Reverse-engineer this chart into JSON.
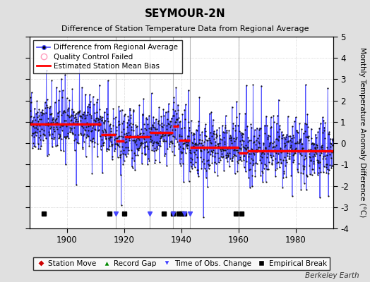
{
  "title": "SEYMOUR-2N",
  "subtitle": "Difference of Station Temperature Data from Regional Average",
  "ylabel": "Monthly Temperature Anomaly Difference (°C)",
  "xlabel_years": [
    1900,
    1920,
    1940,
    1960,
    1980
  ],
  "xlim": [
    1887.0,
    1993.0
  ],
  "ylim": [
    -4,
    5
  ],
  "yticks": [
    -4,
    -3,
    -2,
    -1,
    0,
    1,
    2,
    3,
    4,
    5
  ],
  "background_color": "#e0e0e0",
  "plot_bg_color": "#ffffff",
  "line_color": "#4444ff",
  "dot_color": "#111111",
  "bias_color": "#ff0000",
  "qc_color": "#ff99bb",
  "watermark": "Berkeley Earth",
  "segments": [
    {
      "start": 1887.0,
      "end": 1912.0,
      "bias": 0.9
    },
    {
      "start": 1912.0,
      "end": 1917.0,
      "bias": 0.4
    },
    {
      "start": 1917.0,
      "end": 1920.0,
      "bias": 0.1
    },
    {
      "start": 1920.0,
      "end": 1929.0,
      "bias": 0.3
    },
    {
      "start": 1929.0,
      "end": 1937.0,
      "bias": 0.5
    },
    {
      "start": 1937.0,
      "end": 1939.0,
      "bias": 0.8
    },
    {
      "start": 1939.0,
      "end": 1943.0,
      "bias": 0.15
    },
    {
      "start": 1943.0,
      "end": 1960.0,
      "bias": -0.2
    },
    {
      "start": 1960.0,
      "end": 1963.0,
      "bias": -0.45
    },
    {
      "start": 1963.0,
      "end": 1993.0,
      "bias": -0.35
    }
  ],
  "empirical_breaks": [
    1892,
    1915,
    1920,
    1934,
    1937,
    1939,
    1940,
    1941,
    1959,
    1961
  ],
  "time_of_obs_changes": [
    1917,
    1929,
    1937,
    1941,
    1943
  ],
  "record_gaps": [],
  "station_moves": [],
  "vertical_lines": [
    1917,
    1929,
    1937,
    1943,
    1960
  ],
  "seed": 42
}
